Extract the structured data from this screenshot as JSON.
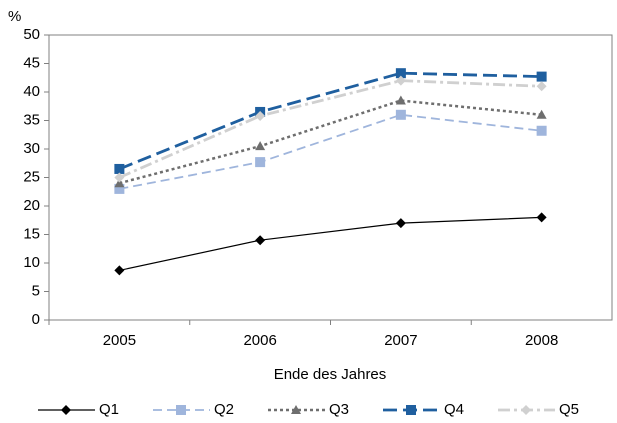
{
  "chart_data": {
    "type": "line",
    "y_label": "%",
    "x_label": "Ende des Jahres",
    "categories": [
      "2005",
      "2006",
      "2007",
      "2008"
    ],
    "ylim": [
      0,
      50
    ],
    "yticks": [
      0,
      5,
      10,
      15,
      20,
      25,
      30,
      35,
      40,
      45,
      50
    ],
    "grid": false,
    "legend": "bottom",
    "series": [
      {
        "name": "Q1",
        "color": "#000000",
        "dash": "solid",
        "marker": "diamond",
        "values": [
          8.7,
          14,
          17,
          18
        ]
      },
      {
        "name": "Q2",
        "color": "#9fb5dc",
        "dash": "dashed",
        "marker": "square",
        "values": [
          23,
          27.7,
          36,
          33.2
        ]
      },
      {
        "name": "Q3",
        "color": "#6e6e6e",
        "dash": "dotted",
        "marker": "triangle",
        "values": [
          24,
          30.5,
          38.5,
          36
        ]
      },
      {
        "name": "Q4",
        "color": "#1f5f9f",
        "dash": "longdash",
        "marker": "square",
        "values": [
          26.5,
          36.5,
          43.3,
          42.7
        ]
      },
      {
        "name": "Q5",
        "color": "#d0d0d0",
        "dash": "dashdot",
        "marker": "diamond",
        "values": [
          25,
          35.8,
          42,
          41
        ]
      }
    ]
  }
}
